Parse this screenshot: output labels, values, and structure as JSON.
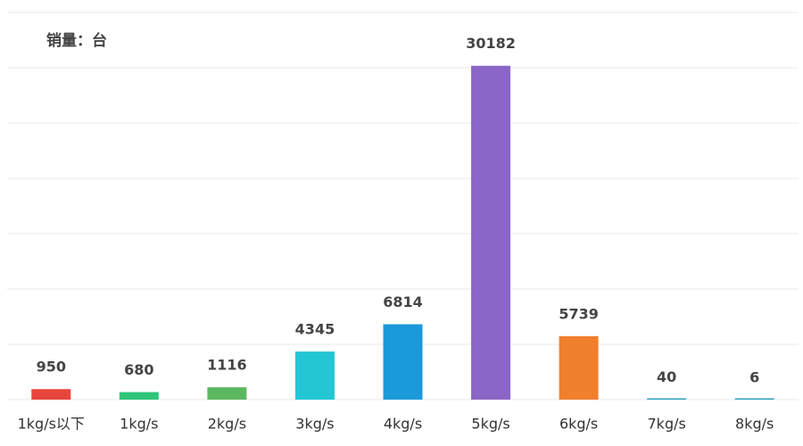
{
  "chart_data": {
    "type": "bar",
    "y_axis_label": "销量：台",
    "categories": [
      "1kg/s以下",
      "1kg/s",
      "2kg/s",
      "3kg/s",
      "4kg/s",
      "5kg/s",
      "6kg/s",
      "7kg/s",
      "8kg/s"
    ],
    "values": [
      950,
      680,
      1116,
      4345,
      6814,
      30182,
      5739,
      40,
      6
    ],
    "colors": [
      "#e8453c",
      "#2ec47a",
      "#5cb860",
      "#22c6d4",
      "#1a9ad8",
      "#8a66c6",
      "#f07f2e",
      "#2ea6c0",
      "#2ea6c0"
    ],
    "ylim": [
      0,
      35000
    ],
    "yticks": [
      0,
      5000,
      10000,
      15000,
      20000,
      25000,
      30000,
      35000
    ],
    "grid": true
  }
}
